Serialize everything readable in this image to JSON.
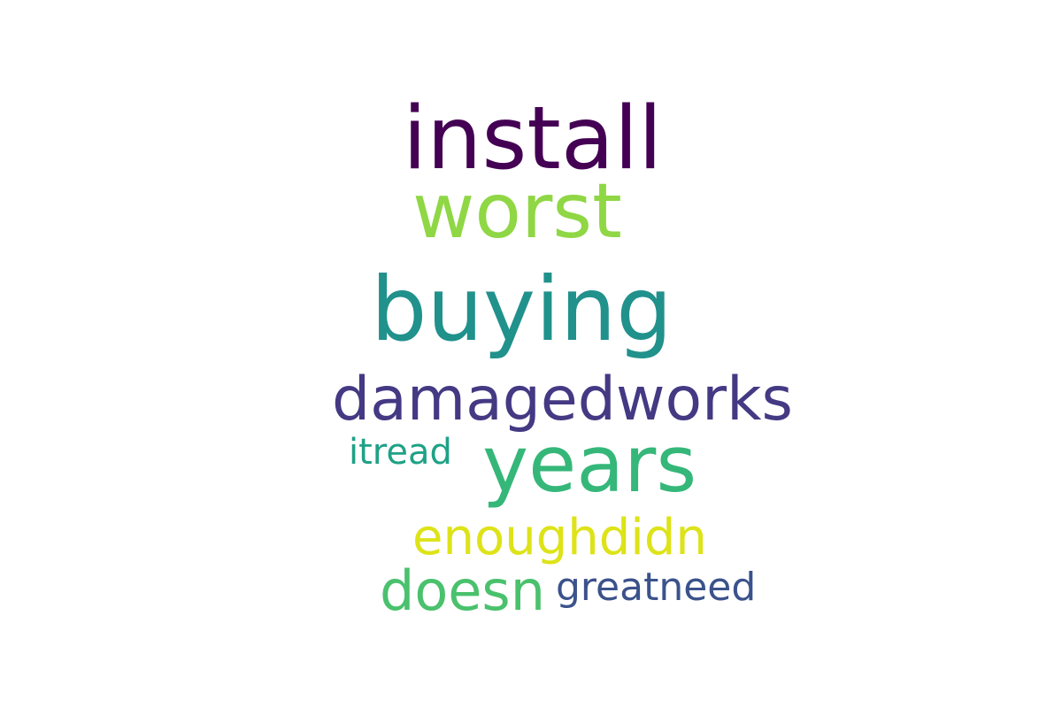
{
  "words": {
    "install": {
      "text": "install",
      "color": "#440154"
    },
    "worst": {
      "text": "worst",
      "color": "#8fd744"
    },
    "buying": {
      "text": "buying",
      "color": "#21918c"
    },
    "damagedworks": {
      "text": "damagedworks",
      "color": "#443983"
    },
    "itread": {
      "text": "itread",
      "color": "#1fa187"
    },
    "years": {
      "text": "years",
      "color": "#35b779"
    },
    "enoughdidn": {
      "text": "enoughdidn",
      "color": "#dde318"
    },
    "doesn": {
      "text": "doesn",
      "color": "#4ac16d"
    },
    "greatneed": {
      "text": "greatneed",
      "color": "#3b528b"
    }
  }
}
